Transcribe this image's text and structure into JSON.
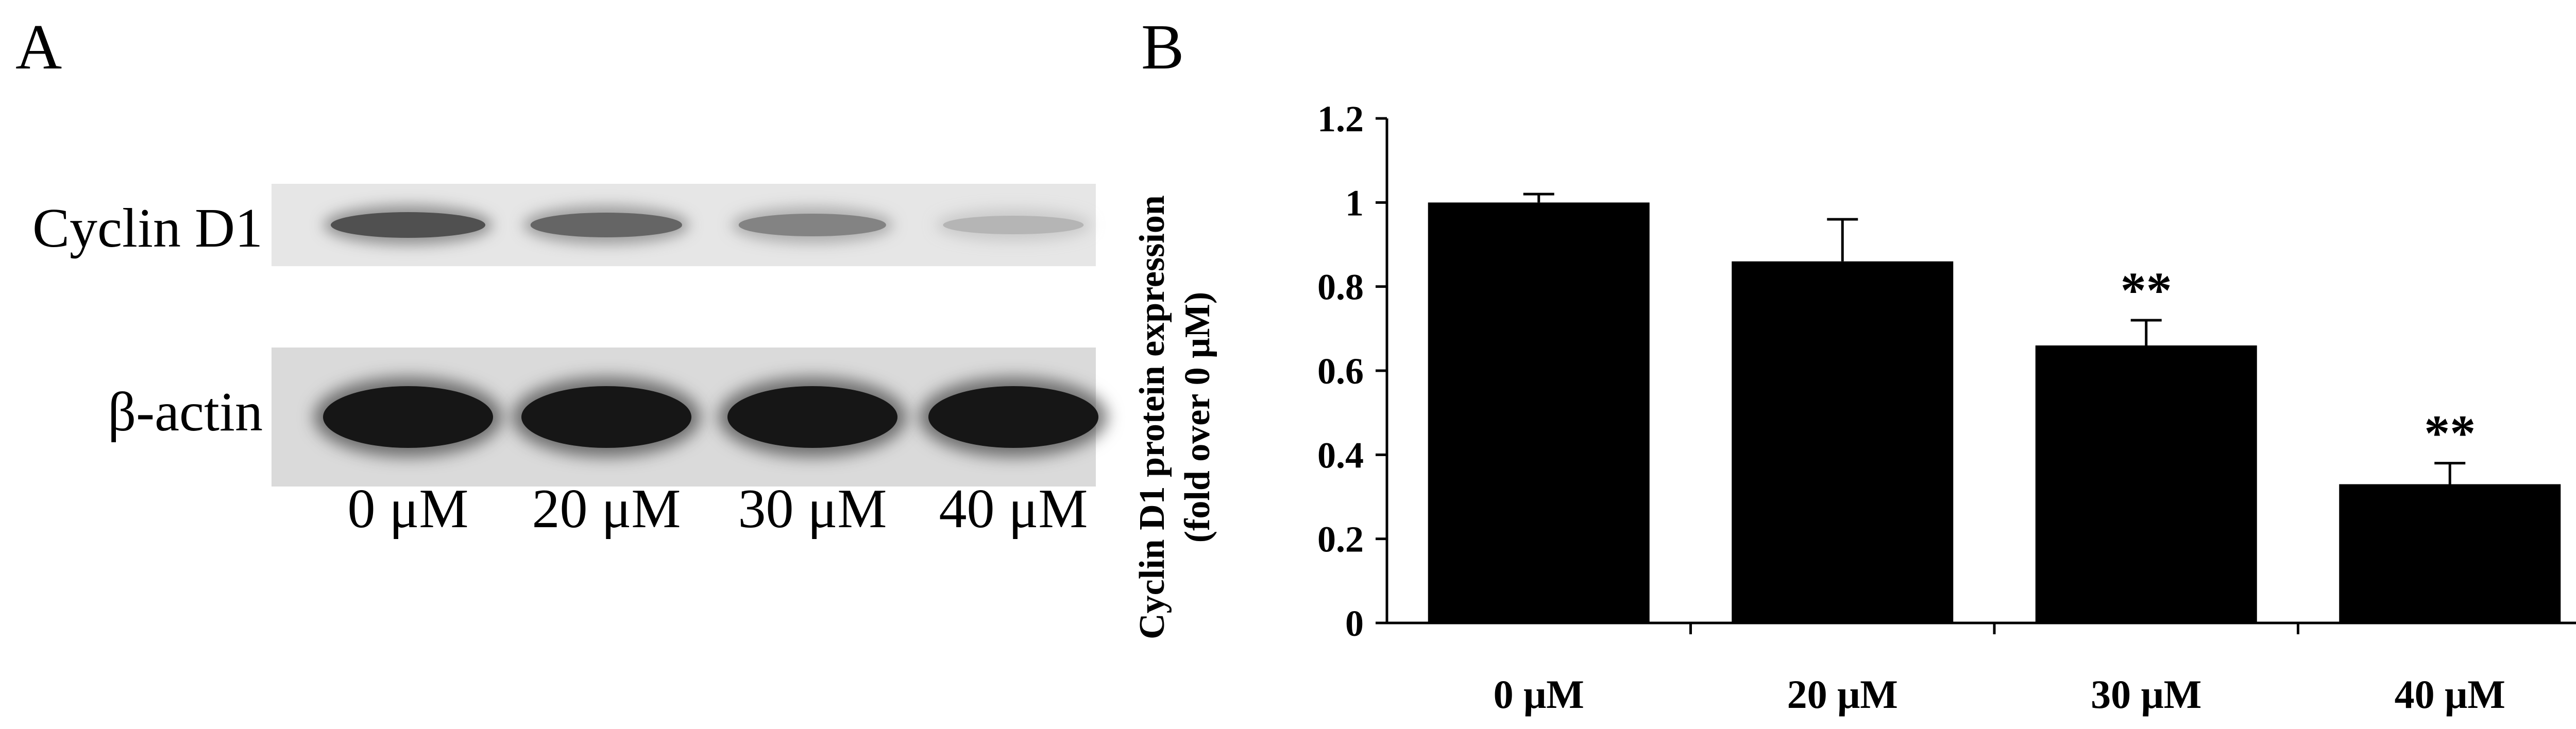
{
  "panels": {
    "a_label": "A",
    "b_label": "B"
  },
  "blot": {
    "rows": [
      {
        "label": "Cyclin D1",
        "intensity": [
          1.0,
          0.86,
          0.66,
          0.33
        ]
      },
      {
        "label": "β-actin",
        "intensity": [
          1.0,
          1.0,
          1.0,
          1.0
        ]
      }
    ],
    "lanes": [
      "0 μM",
      "20 μM",
      "30 μM",
      "40 μM"
    ]
  },
  "chart_data": {
    "type": "bar",
    "categories": [
      "0 μM",
      "20 μM",
      "30 μM",
      "40 μM"
    ],
    "values": [
      1.0,
      0.86,
      0.66,
      0.33
    ],
    "errors": [
      0.02,
      0.1,
      0.06,
      0.05
    ],
    "annotations": [
      "",
      "",
      "**",
      "**"
    ],
    "ylabel_lines": [
      "Cyclin D1 protein expression",
      "(fold over 0 μM)"
    ],
    "ylim": [
      0,
      1.2
    ],
    "yticks": [
      "0",
      "0.2",
      "0.4",
      "0.6",
      "0.8",
      "1",
      "1.2"
    ],
    "bar_color": "#000000",
    "grid": false
  }
}
